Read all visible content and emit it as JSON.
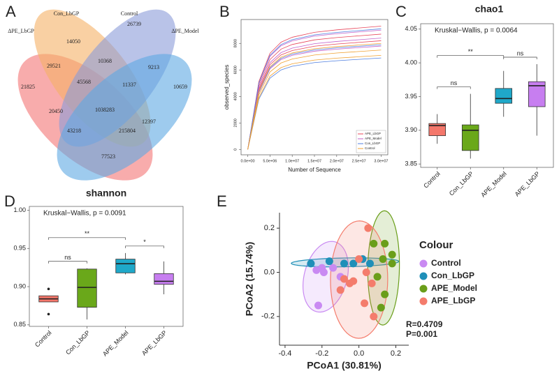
{
  "chart_data": [
    {
      "type": "venn",
      "panel": "A",
      "sets": [
        "ΔPE_LbGP",
        "Con_LbGP",
        "Control",
        "ΔPE_Model"
      ],
      "colors": [
        "#f47474",
        "#f5b065",
        "#8b9bd8",
        "#5ea8e2"
      ],
      "values": [
        21825,
        14050,
        26739,
        10659,
        29521,
        10368,
        9213,
        45568,
        11337,
        1038283,
        20450,
        12397,
        43218,
        215804,
        77523
      ]
    },
    {
      "type": "line",
      "panel": "B",
      "xlabel": "Number of Sequence",
      "ylabel": "observed_species",
      "x": [
        0,
        2500000,
        5000000,
        7500000,
        10000000,
        15000000,
        20000000,
        25000000,
        30000000
      ],
      "xlim": [
        -1500000,
        31500000
      ],
      "xticks": [
        {
          "value": 0,
          "label": "0.0e+00"
        },
        {
          "value": 5000000,
          "label": "5.0e+06"
        },
        {
          "value": 10000000,
          "label": "1.0e+07"
        },
        {
          "value": 15000000,
          "label": "1.5e+07"
        },
        {
          "value": 20000000,
          "label": "2.0e+07"
        },
        {
          "value": 25000000,
          "label": "2.5e+07"
        },
        {
          "value": 30000000,
          "label": "3.0e+07"
        }
      ],
      "ylim": [
        -400,
        9800
      ],
      "yticks": [
        0,
        2000,
        4000,
        6000,
        8000
      ],
      "legend": "bottom-right",
      "series": [
        {
          "name": "APE_LbGP",
          "color": "#e8455a",
          "values": [
            0,
            5115,
            7254,
            8091,
            8463,
            8835,
            9021,
            9161,
            9300
          ]
        },
        {
          "name": "APE_LbGP",
          "color": "#e8455a",
          "values": [
            0,
            4785,
            6786,
            7569,
            7917,
            8265,
            8439,
            8570,
            8700
          ]
        },
        {
          "name": "APE_LbGP",
          "color": "#e8455a",
          "values": [
            0,
            4510,
            6396,
            7134,
            7462,
            7790,
            7954,
            8077,
            8200
          ]
        },
        {
          "name": "APE_Model",
          "color": "#c361c9",
          "values": [
            0,
            4950,
            7020,
            7830,
            8190,
            8550,
            8730,
            8865,
            9000
          ]
        },
        {
          "name": "APE_Model",
          "color": "#c361c9",
          "values": [
            0,
            4620,
            6552,
            7308,
            7644,
            7980,
            8148,
            8274,
            8400
          ]
        },
        {
          "name": "APE_Model",
          "color": "#c361c9",
          "values": [
            0,
            4290,
            6084,
            6786,
            7098,
            7410,
            7566,
            7683,
            7800
          ]
        },
        {
          "name": "Con_LbGP",
          "color": "#4f7fe0",
          "values": [
            0,
            5005,
            7098,
            7917,
            8281,
            8645,
            8827,
            8964,
            9100
          ]
        },
        {
          "name": "Con_LbGP",
          "color": "#4f7fe0",
          "values": [
            0,
            4345,
            6162,
            6873,
            7189,
            7505,
            7663,
            7782,
            7900
          ]
        },
        {
          "name": "Con_LbGP",
          "color": "#4f7fe0",
          "values": [
            0,
            3795,
            5382,
            6003,
            6279,
            6555,
            6693,
            6797,
            6900
          ]
        },
        {
          "name": "Control",
          "color": "#f0a030",
          "values": [
            0,
            4400,
            6240,
            6960,
            7280,
            7600,
            7760,
            7880,
            8000
          ]
        },
        {
          "name": "Control",
          "color": "#f0a030",
          "values": [
            0,
            4125,
            5850,
            6525,
            6825,
            7125,
            7275,
            7388,
            7500
          ]
        },
        {
          "name": "Control",
          "color": "#f0a030",
          "values": [
            0,
            3905,
            5538,
            6177,
            6461,
            6745,
            6887,
            6994,
            7100
          ]
        }
      ]
    },
    {
      "type": "box",
      "panel": "C",
      "title": "chao1",
      "annotation": "Kruskal−Wallis, p = 0.0064",
      "categories": [
        "Control",
        "Con_LbGP",
        "APE_Model",
        "APE_LbGP"
      ],
      "colors": [
        "#f4776b",
        "#6aa81a",
        "#1fa8c9",
        "#c77ef0"
      ],
      "min": [
        3.88,
        3.858,
        3.92,
        3.892
      ],
      "q1": [
        3.892,
        3.87,
        3.94,
        3.935
      ],
      "median": [
        3.907,
        3.9,
        3.947,
        3.966
      ],
      "q3": [
        3.91,
        3.908,
        3.962,
        3.972
      ],
      "max": [
        3.924,
        3.954,
        3.988,
        3.998
      ],
      "outliers": [
        [],
        [],
        [],
        []
      ],
      "ylim": [
        3.845,
        4.058
      ],
      "yticks": [
        3.85,
        {
          "value": 3.9,
          "label": "3.90"
        },
        3.95,
        {
          "value": 4,
          "label": "4.00"
        },
        4.05
      ],
      "comparisons": [
        {
          "groups": [
            "Control",
            "Con_LbGP"
          ],
          "label": "ns"
        },
        {
          "groups": [
            "Control",
            "APE_Model"
          ],
          "label": "**"
        },
        {
          "groups": [
            "APE_Model",
            "APE_LbGP"
          ],
          "label": "ns"
        }
      ]
    },
    {
      "type": "box",
      "panel": "D",
      "title": "shannon",
      "annotation": "Kruskal−Wallis, p = 0.0091",
      "categories": [
        "Control",
        "Con_LbGP",
        "APE_Model",
        "APE_LbGP"
      ],
      "colors": [
        "#f4776b",
        "#6aa81a",
        "#1fa8c9",
        "#c77ef0"
      ],
      "min": [
        0.88,
        0.857,
        0.916,
        0.89
      ],
      "q1": [
        0.88,
        0.873,
        0.918,
        0.903
      ],
      "median": [
        0.884,
        0.899,
        0.93,
        0.907
      ],
      "q3": [
        0.888,
        0.923,
        0.936,
        0.917
      ],
      "max": [
        0.888,
        0.924,
        0.944,
        0.933
      ],
      "outliers": [
        [
          0.897,
          0.864
        ],
        [],
        [],
        []
      ],
      "ylim": [
        0.848,
        1.005
      ],
      "yticks": [
        0.85,
        {
          "value": 0.9,
          "label": "0.90"
        },
        0.95,
        {
          "value": 1,
          "label": "1.00"
        }
      ],
      "comparisons": [
        {
          "groups": [
            "Control",
            "Con_LbGP"
          ],
          "label": "ns"
        },
        {
          "groups": [
            "Control",
            "APE_Model"
          ],
          "label": "**"
        },
        {
          "groups": [
            "APE_Model",
            "APE_LbGP"
          ],
          "label": "*"
        }
      ]
    },
    {
      "type": "scatter",
      "panel": "E",
      "xlabel": "PCoA1 (30.81%)",
      "ylabel": "PCoA2 (15.74%)",
      "legend_title": "Colour",
      "annotations": [
        "R=0.4709",
        "P=0.001"
      ],
      "xlim": [
        -0.43,
        0.27
      ],
      "ylim": [
        -0.33,
        0.27
      ],
      "xticks": [
        -0.4,
        -0.2,
        {
          "value": 0,
          "label": "0.0"
        },
        0.2
      ],
      "yticks": [
        -0.2,
        {
          "value": 0,
          "label": "0.0"
        },
        0.2
      ],
      "series": [
        {
          "name": "Control",
          "color": "#c98af2",
          "x": [
            -0.23,
            -0.2,
            -0.19,
            -0.14,
            -0.1,
            -0.22
          ],
          "y": [
            0.01,
            0.02,
            0.0,
            0.02,
            -0.02,
            -0.15
          ]
        },
        {
          "name": "Con_LbGP",
          "color": "#1f8fb8",
          "x": [
            -0.26,
            -0.16,
            -0.08,
            -0.03,
            0.02,
            0.06
          ],
          "y": [
            0.04,
            0.05,
            0.04,
            0.04,
            0.06,
            0.04
          ]
        },
        {
          "name": "APE_Model",
          "color": "#6a9e1a",
          "x": [
            0.08,
            0.14,
            0.18,
            0.13,
            0.18,
            0.1,
            0.14,
            0.12
          ],
          "y": [
            0.13,
            0.13,
            0.08,
            0.06,
            0.04,
            -0.02,
            -0.1,
            -0.16
          ]
        },
        {
          "name": "APE_LbGP",
          "color": "#f47c6c",
          "x": [
            0.05,
            0.0,
            -0.05,
            -0.03,
            -0.08,
            0.04,
            0.07,
            0.03,
            0.08,
            -0.1
          ],
          "y": [
            0.2,
            0.06,
            -0.05,
            -0.04,
            -0.03,
            0.0,
            -0.05,
            -0.14,
            -0.2,
            -0.08
          ]
        }
      ]
    }
  ]
}
